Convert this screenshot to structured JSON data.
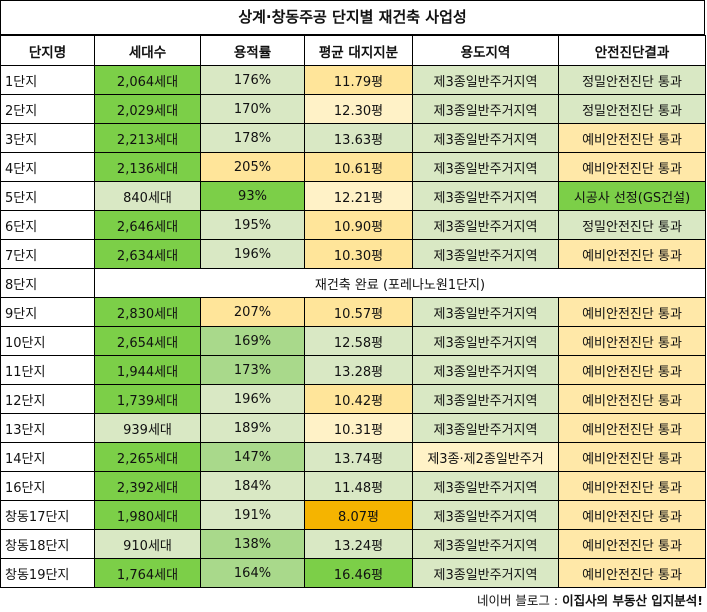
{
  "title": "상계·창동주공 단지별 재건축 사업성",
  "headers": [
    "단지명",
    "세대수",
    "용적률",
    "평균 대지지분",
    "용도지역",
    "안전진단결과"
  ],
  "rows": [
    {
      "name": "1단지",
      "households": "2,064세대",
      "far": "176%",
      "land": "11.79평",
      "zone": "제3종일반주거지역",
      "safety": "정밀안전진단 통과"
    },
    {
      "name": "2단지",
      "households": "2,029세대",
      "far": "170%",
      "land": "12.30평",
      "zone": "제3종일반주거지역",
      "safety": "정밀안전진단 통과"
    },
    {
      "name": "3단지",
      "households": "2,213세대",
      "far": "178%",
      "land": "13.63평",
      "zone": "제3종일반주거지역",
      "safety": "예비안전진단 통과"
    },
    {
      "name": "4단지",
      "households": "2,136세대",
      "far": "205%",
      "land": "10.61평",
      "zone": "제3종일반주거지역",
      "safety": "예비안전진단 통과"
    },
    {
      "name": "5단지",
      "households": "840세대",
      "far": "93%",
      "land": "12.21평",
      "zone": "제3종일반주거지역",
      "safety": "시공사 선정(GS건설)"
    },
    {
      "name": "6단지",
      "households": "2,646세대",
      "far": "195%",
      "land": "10.90평",
      "zone": "제3종일반주거지역",
      "safety": "정밀안전진단 통과"
    },
    {
      "name": "7단지",
      "households": "2,634세대",
      "far": "196%",
      "land": "10.30평",
      "zone": "제3종일반주거지역",
      "safety": "예비안전진단 통과"
    },
    {
      "name": "8단지",
      "merged": "재건축 완료 (포레나노원1단지)"
    },
    {
      "name": "9단지",
      "households": "2,830세대",
      "far": "207%",
      "land": "10.57평",
      "zone": "제3종일반주거지역",
      "safety": "예비안전진단 통과"
    },
    {
      "name": "10단지",
      "households": "2,654세대",
      "far": "169%",
      "land": "12.58평",
      "zone": "제3종일반주거지역",
      "safety": "예비안전진단 통과"
    },
    {
      "name": "11단지",
      "households": "1,944세대",
      "far": "173%",
      "land": "13.28평",
      "zone": "제3종일반주거지역",
      "safety": "예비안전진단 통과"
    },
    {
      "name": "12단지",
      "households": "1,739세대",
      "far": "196%",
      "land": "10.42평",
      "zone": "제3종일반주거지역",
      "safety": "예비안전진단 통과"
    },
    {
      "name": "13단지",
      "households": "939세대",
      "far": "189%",
      "land": "10.31평",
      "zone": "제3종일반주거지역",
      "safety": "예비안전진단 통과"
    },
    {
      "name": "14단지",
      "households": "2,265세대",
      "far": "147%",
      "land": "13.74평",
      "zone": "제3종·제2종일반주거",
      "safety": "예비안전진단 통과"
    },
    {
      "name": "16단지",
      "households": "2,392세대",
      "far": "184%",
      "land": "11.48평",
      "zone": "제3종일반주거지역",
      "safety": "예비안전진단 통과"
    },
    {
      "name": "창동17단지",
      "households": "1,980세대",
      "far": "191%",
      "land": "8.07평",
      "zone": "제3종일반주거지역",
      "safety": "예비안전진단 통과"
    },
    {
      "name": "창동18단지",
      "households": "910세대",
      "far": "138%",
      "land": "13.24평",
      "zone": "제3종일반주거지역",
      "safety": "예비안전진단 통과"
    },
    {
      "name": "창동19단지",
      "households": "1,764세대",
      "far": "164%",
      "land": "16.46평",
      "zone": "제3종일반주거지역",
      "safety": "예비안전진단 통과"
    }
  ],
  "footer": {
    "prefix": "네이버 블로그 : ",
    "blog": "이집사의 부동산 입지분석!"
  },
  "colors": {
    "green_strong": "#7ccf48",
    "green_light": "#d9e8c4",
    "green_mid": "#a9d98b",
    "yellow": "#ffe59a",
    "yellow_light": "#fff2c7",
    "orange": "#f5b400"
  }
}
